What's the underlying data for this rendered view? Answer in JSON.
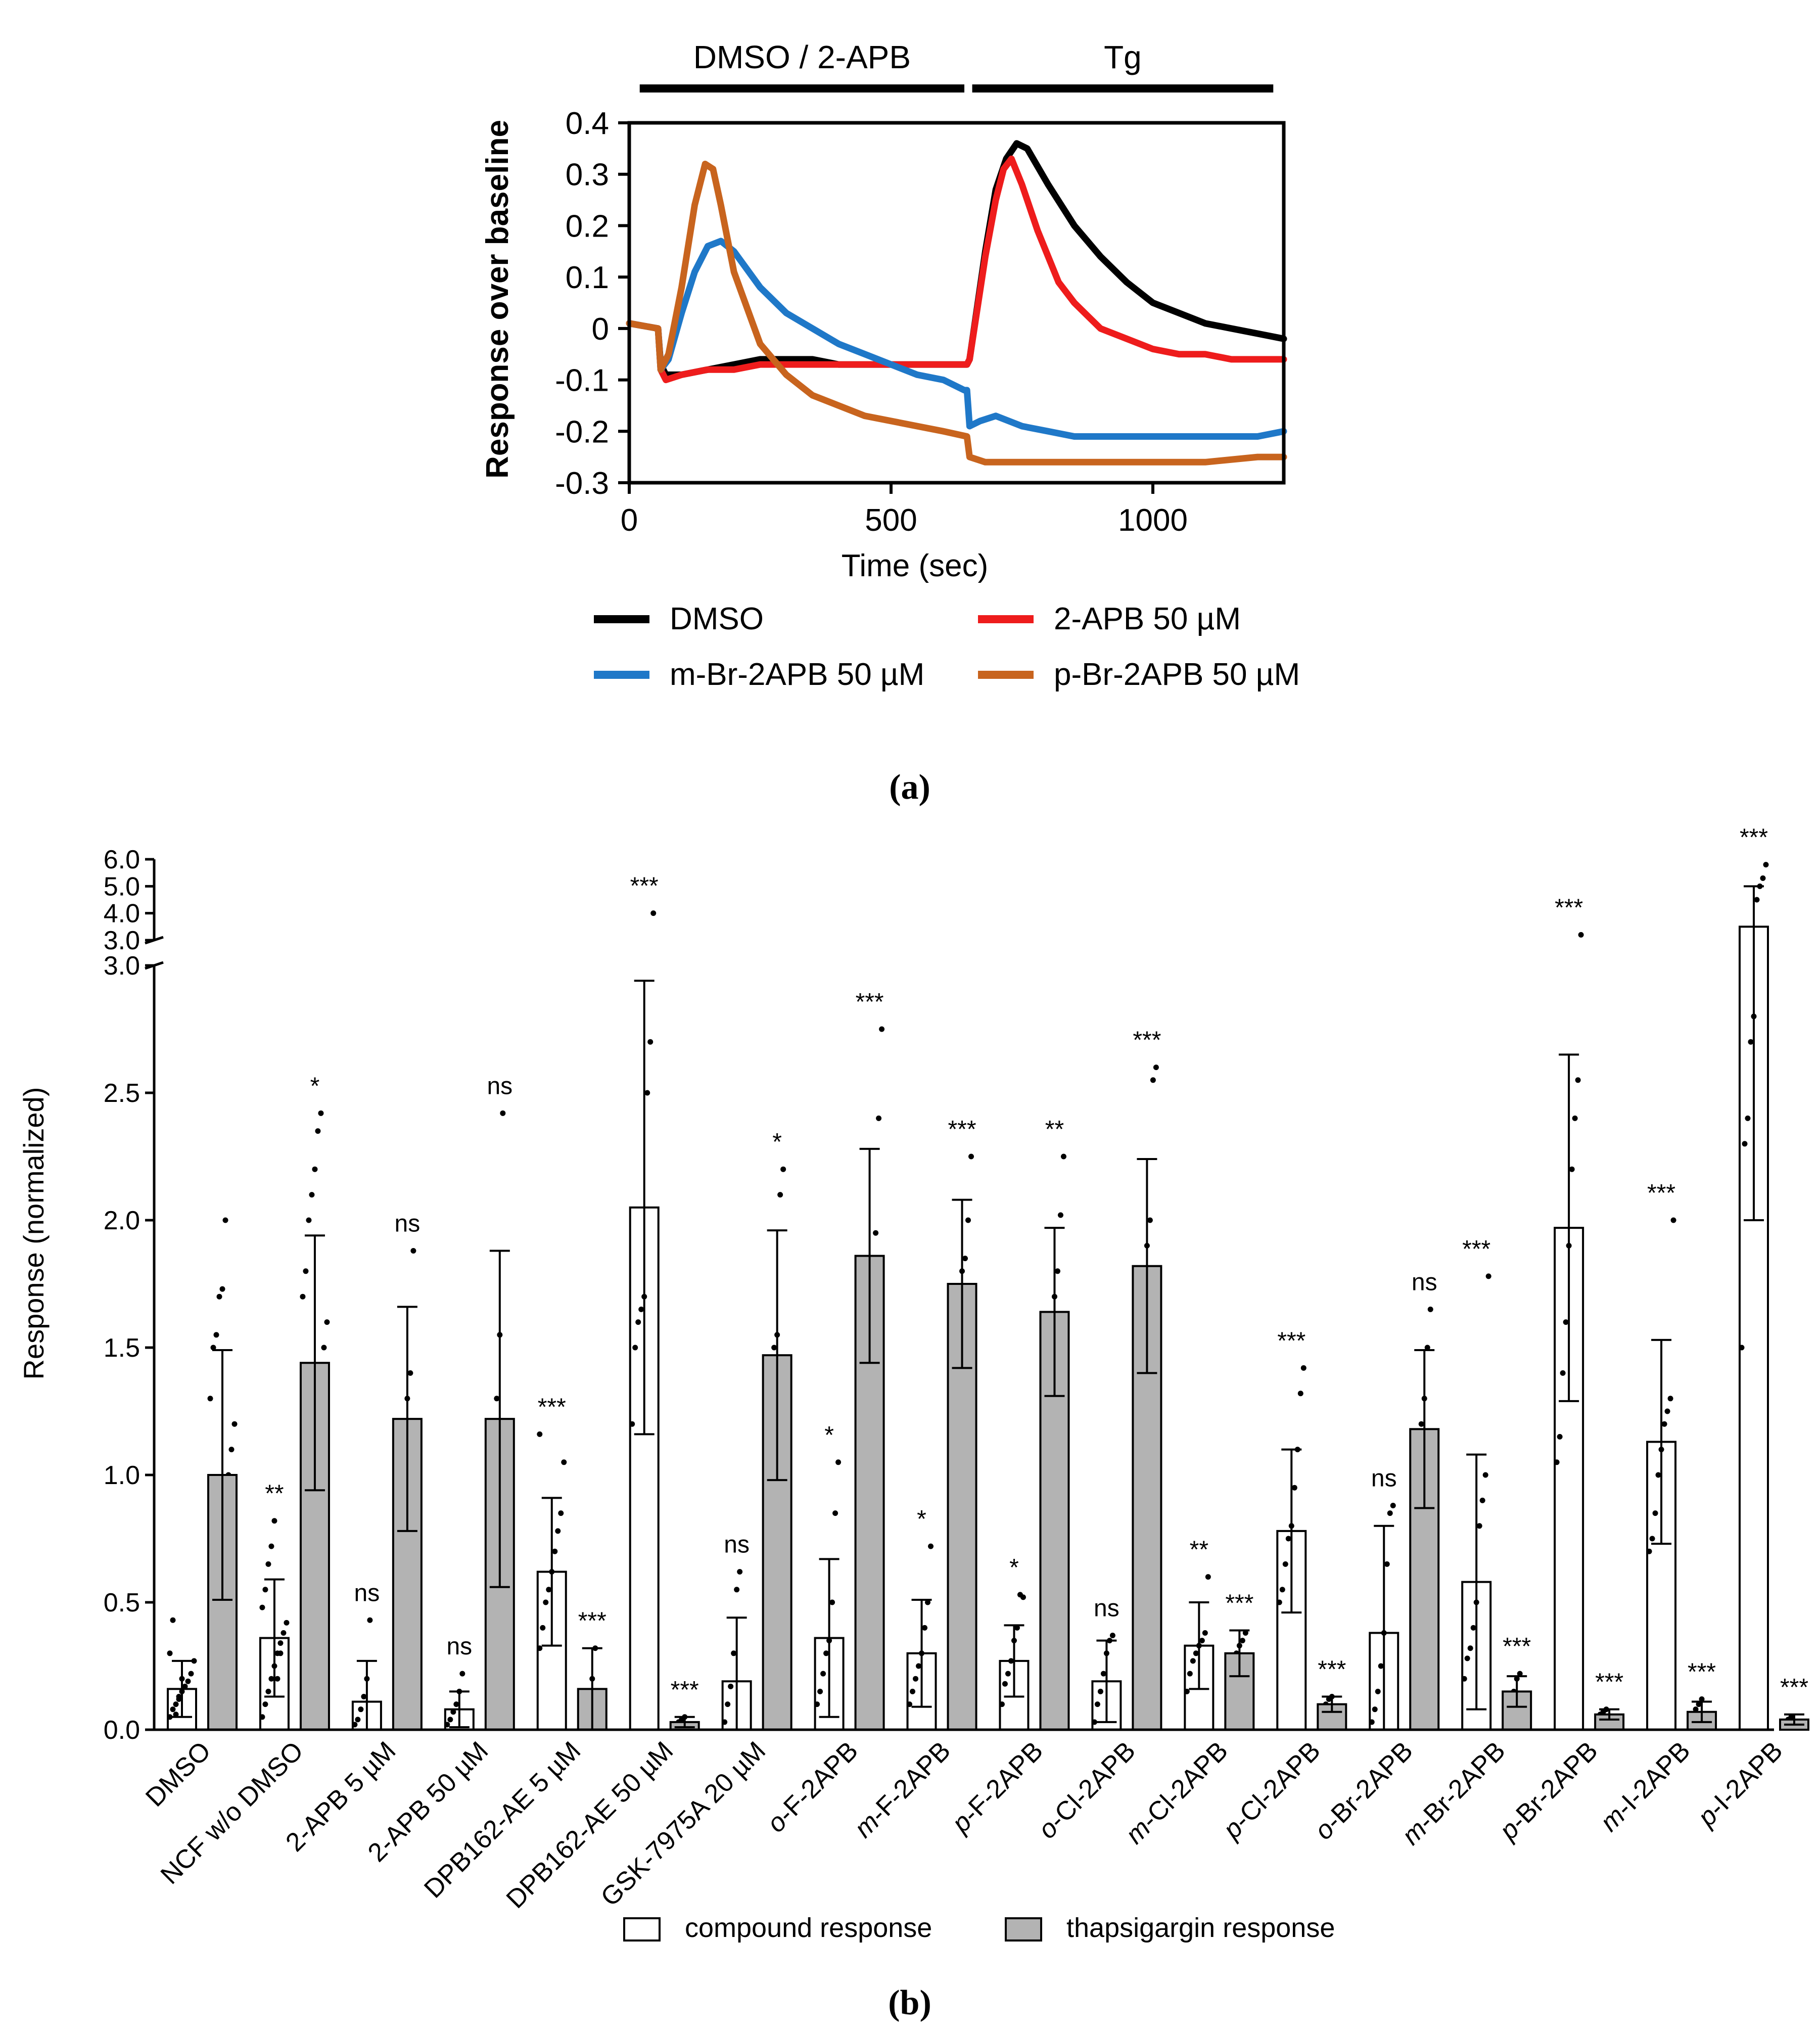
{
  "chart_data": [
    {
      "type": "line",
      "panel_label": "(a)",
      "xlabel": "Time (sec)",
      "ylabel": "Response over baseline",
      "xlim": [
        0,
        1250
      ],
      "ylim": [
        -0.3,
        0.4
      ],
      "xticks": [
        "0",
        "500",
        "1000"
      ],
      "xtick_values": [
        0,
        500,
        1000
      ],
      "yticks": [
        "0.4",
        "0.3",
        "0.2",
        "0.1",
        "0",
        "-0.1",
        "-0.2",
        "-0.3"
      ],
      "ytick_values": [
        0.4,
        0.3,
        0.2,
        0.1,
        0,
        -0.1,
        -0.2,
        -0.3
      ],
      "treatments": [
        {
          "label": "DMSO / 2-APB",
          "start": 20,
          "end": 640
        },
        {
          "label": "Tg",
          "start": 655,
          "end": 1230
        }
      ],
      "series": [
        {
          "name": "DMSO",
          "color": "#000000",
          "x": [
            0,
            55,
            60,
            70,
            100,
            150,
            200,
            250,
            300,
            350,
            400,
            450,
            500,
            550,
            600,
            645,
            650,
            680,
            700,
            720,
            740,
            760,
            800,
            850,
            900,
            950,
            1000,
            1050,
            1100,
            1150,
            1200,
            1250
          ],
          "y": [
            0.01,
            0.0,
            -0.07,
            -0.09,
            -0.09,
            -0.08,
            -0.07,
            -0.06,
            -0.06,
            -0.06,
            -0.07,
            -0.07,
            -0.07,
            -0.07,
            -0.07,
            -0.07,
            -0.06,
            0.15,
            0.27,
            0.33,
            0.36,
            0.35,
            0.28,
            0.2,
            0.14,
            0.09,
            0.05,
            0.03,
            0.01,
            0.0,
            -0.01,
            -0.02
          ]
        },
        {
          "name": "2-APB 50 µM",
          "color": "#ee1c1c",
          "x": [
            0,
            55,
            60,
            70,
            100,
            150,
            200,
            250,
            300,
            350,
            400,
            450,
            500,
            550,
            600,
            645,
            650,
            680,
            700,
            715,
            730,
            750,
            780,
            820,
            850,
            900,
            950,
            1000,
            1050,
            1100,
            1150,
            1200,
            1250
          ],
          "y": [
            0.01,
            0.0,
            -0.08,
            -0.1,
            -0.09,
            -0.08,
            -0.08,
            -0.07,
            -0.07,
            -0.07,
            -0.07,
            -0.07,
            -0.07,
            -0.07,
            -0.07,
            -0.07,
            -0.06,
            0.14,
            0.25,
            0.31,
            0.33,
            0.28,
            0.19,
            0.09,
            0.05,
            0.0,
            -0.02,
            -0.04,
            -0.05,
            -0.05,
            -0.06,
            -0.06,
            -0.06
          ]
        },
        {
          "name": "m-Br-2APB 50 µM",
          "color": "#1f78c8",
          "x": [
            0,
            55,
            60,
            75,
            100,
            125,
            150,
            175,
            200,
            250,
            300,
            350,
            400,
            450,
            500,
            550,
            600,
            640,
            645,
            650,
            670,
            700,
            750,
            800,
            850,
            900,
            1000,
            1100,
            1200,
            1250
          ],
          "y": [
            0.01,
            0.0,
            -0.08,
            -0.06,
            0.03,
            0.11,
            0.16,
            0.17,
            0.15,
            0.08,
            0.03,
            0.0,
            -0.03,
            -0.05,
            -0.07,
            -0.09,
            -0.1,
            -0.12,
            -0.12,
            -0.19,
            -0.18,
            -0.17,
            -0.19,
            -0.2,
            -0.21,
            -0.21,
            -0.21,
            -0.21,
            -0.21,
            -0.2
          ]
        },
        {
          "name": "p-Br-2APB 50 µM",
          "color": "#c8641e",
          "x": [
            0,
            55,
            60,
            75,
            100,
            125,
            145,
            160,
            175,
            200,
            250,
            300,
            350,
            400,
            450,
            500,
            550,
            600,
            645,
            650,
            680,
            700,
            800,
            900,
            1000,
            1100,
            1200,
            1250
          ],
          "y": [
            0.01,
            0.0,
            -0.08,
            -0.05,
            0.08,
            0.24,
            0.32,
            0.31,
            0.24,
            0.11,
            -0.03,
            -0.09,
            -0.13,
            -0.15,
            -0.17,
            -0.18,
            -0.19,
            -0.2,
            -0.21,
            -0.25,
            -0.26,
            -0.26,
            -0.26,
            -0.26,
            -0.26,
            -0.26,
            -0.25,
            -0.25
          ]
        }
      ]
    },
    {
      "type": "bar",
      "panel_label": "(b)",
      "ylabel": "Response (normalized)",
      "ylim": [
        0,
        6
      ],
      "y_axis_break": {
        "lower_range": [
          0,
          3.0
        ],
        "upper_range": [
          3.0,
          6.0
        ]
      },
      "yticks_lower": [
        "0.0",
        "0.5",
        "1.0",
        "1.5",
        "2.0",
        "2.5",
        "3.0"
      ],
      "ytick_values_lower": [
        0,
        0.5,
        1.0,
        1.5,
        2.0,
        2.5,
        3.0
      ],
      "yticks_upper": [
        "3.0",
        "4.0",
        "5.0",
        "6.0"
      ],
      "ytick_values_upper": [
        3.0,
        4.0,
        5.0,
        6.0
      ],
      "categories": [
        {
          "pre": "",
          "it": "",
          "post": "DMSO"
        },
        {
          "pre": "",
          "it": "",
          "post": "NCF w/o DMSO"
        },
        {
          "pre": "",
          "it": "",
          "post": "2-APB 5 µM"
        },
        {
          "pre": "",
          "it": "",
          "post": "2-APB 50 µM"
        },
        {
          "pre": "",
          "it": "",
          "post": "DPB162-AE 5 µM"
        },
        {
          "pre": "",
          "it": "",
          "post": "DPB162-AE 50 µM"
        },
        {
          "pre": "",
          "it": "",
          "post": "GSK-7975A 20 µM"
        },
        {
          "pre": "",
          "it": "o",
          "post": "-F-2APB"
        },
        {
          "pre": "",
          "it": "m",
          "post": "-F-2APB"
        },
        {
          "pre": "",
          "it": "p",
          "post": "-F-2APB"
        },
        {
          "pre": "",
          "it": "o",
          "post": "-Cl-2APB"
        },
        {
          "pre": "",
          "it": "m",
          "post": "-Cl-2APB"
        },
        {
          "pre": "",
          "it": "p",
          "post": "-Cl-2APB"
        },
        {
          "pre": "",
          "it": "o",
          "post": "-Br-2APB"
        },
        {
          "pre": "",
          "it": "m",
          "post": "-Br-2APB"
        },
        {
          "pre": "",
          "it": "p",
          "post": "-Br-2APB"
        },
        {
          "pre": "",
          "it": "m",
          "post": "-I-2APB"
        },
        {
          "pre": "",
          "it": "p",
          "post": "-I-2APB"
        }
      ],
      "series": [
        {
          "name": "compound response",
          "fill": "#ffffff",
          "values": [
            0.16,
            0.36,
            0.11,
            0.08,
            0.62,
            2.05,
            0.19,
            0.36,
            0.3,
            0.27,
            0.19,
            0.33,
            0.78,
            0.38,
            0.58,
            1.97,
            1.13,
            3.5
          ],
          "errors": [
            0.11,
            0.23,
            0.16,
            0.07,
            0.29,
            0.89,
            0.25,
            0.31,
            0.21,
            0.14,
            0.16,
            0.17,
            0.32,
            0.42,
            0.5,
            0.68,
            0.4,
            1.5
          ],
          "significance": [
            "",
            "**",
            "ns",
            "ns",
            "***",
            "***",
            "ns",
            "*",
            "*",
            "*",
            "ns",
            "**",
            "***",
            "ns",
            "***",
            "***",
            "***",
            "***"
          ],
          "points": [
            [
              0.05,
              0.08,
              0.1,
              0.12,
              0.15,
              0.17,
              0.19,
              0.22,
              0.27,
              0.3,
              0.43,
              0.06,
              0.13,
              0.2
            ],
            [
              0.05,
              0.1,
              0.15,
              0.2,
              0.25,
              0.3,
              0.34,
              0.38,
              0.42,
              0.48,
              0.55,
              0.65,
              0.72,
              0.82,
              0.2,
              0.3
            ],
            [
              0.02,
              0.04,
              0.08,
              0.13,
              0.2,
              0.43
            ],
            [
              0.02,
              0.04,
              0.07,
              0.1,
              0.15,
              0.22
            ],
            [
              0.32,
              0.4,
              0.5,
              0.55,
              0.62,
              0.7,
              0.78,
              0.85,
              1.05,
              1.16
            ],
            [
              1.2,
              1.5,
              1.6,
              1.65,
              1.7,
              2.5,
              2.7,
              4.0
            ],
            [
              0.03,
              0.1,
              0.17,
              0.3,
              0.55,
              0.62
            ],
            [
              0.1,
              0.15,
              0.22,
              0.3,
              0.35,
              0.5,
              0.85,
              1.05
            ],
            [
              0.1,
              0.15,
              0.2,
              0.25,
              0.3,
              0.4,
              0.5,
              0.72
            ],
            [
              0.1,
              0.18,
              0.22,
              0.27,
              0.35,
              0.4,
              0.53,
              0.52
            ],
            [
              0.03,
              0.1,
              0.15,
              0.22,
              0.3,
              0.35,
              0.37
            ],
            [
              0.15,
              0.22,
              0.27,
              0.3,
              0.33,
              0.35,
              0.38,
              0.6
            ],
            [
              0.5,
              0.55,
              0.65,
              0.75,
              0.8,
              0.95,
              1.1,
              1.32,
              1.42
            ],
            [
              0.03,
              0.08,
              0.15,
              0.25,
              0.38,
              0.65,
              0.85,
              0.88
            ],
            [
              0.2,
              0.28,
              0.32,
              0.4,
              0.5,
              0.8,
              0.9,
              1.0,
              1.78
            ],
            [
              1.05,
              1.15,
              1.4,
              1.6,
              1.9,
              2.2,
              2.4,
              2.55,
              3.2
            ],
            [
              0.7,
              0.75,
              0.85,
              1.0,
              1.1,
              1.2,
              1.25,
              1.3,
              2.0
            ],
            [
              1.5,
              2.3,
              2.4,
              2.7,
              2.8,
              4.5,
              5.0,
              5.3,
              5.8
            ]
          ]
        },
        {
          "name": "thapsigargin response",
          "fill": "#b3b3b3",
          "values": [
            1.0,
            1.44,
            1.22,
            1.22,
            0.16,
            0.03,
            1.47,
            1.86,
            1.75,
            1.64,
            1.82,
            0.3,
            0.1,
            1.18,
            0.15,
            0.06,
            0.07,
            0.04
          ],
          "errors": [
            0.49,
            0.5,
            0.44,
            0.66,
            0.16,
            0.02,
            0.49,
            0.42,
            0.33,
            0.33,
            0.42,
            0.09,
            0.03,
            0.31,
            0.06,
            0.02,
            0.04,
            0.02
          ],
          "significance": [
            "",
            "*",
            "ns",
            "ns",
            "***",
            "***",
            "*",
            "***",
            "***",
            "**",
            "***",
            "***",
            "***",
            "ns",
            "***",
            "***",
            "***",
            "***"
          ],
          "points": [
            [
              0.17,
              0.45,
              0.6,
              0.7,
              0.8,
              0.9,
              1.0,
              1.1,
              1.2,
              1.3,
              1.5,
              1.55,
              1.7,
              1.73,
              2.0
            ],
            [
              0.5,
              0.7,
              0.9,
              1.0,
              1.2,
              1.3,
              1.4,
              1.5,
              1.6,
              1.7,
              1.8,
              2.0,
              2.1,
              2.2,
              2.35,
              2.42
            ],
            [
              0.6,
              0.8,
              1.1,
              1.2,
              1.3,
              1.4,
              1.88
            ],
            [
              0.27,
              0.62,
              0.9,
              1.3,
              1.55,
              2.42
            ],
            [
              0.03,
              0.08,
              0.1,
              0.15,
              0.2,
              0.32
            ],
            [
              0.01,
              0.02,
              0.03,
              0.04,
              0.05
            ],
            [
              0.9,
              1.0,
              1.2,
              1.5,
              1.55,
              2.1,
              2.2
            ],
            [
              1.6,
              1.65,
              1.7,
              1.75,
              1.8,
              1.85,
              1.95,
              2.4,
              2.75
            ],
            [
              1.35,
              1.5,
              1.6,
              1.7,
              1.8,
              1.85,
              2.0,
              2.25
            ],
            [
              1.3,
              1.35,
              1.45,
              1.6,
              1.7,
              1.8,
              2.02,
              2.25
            ],
            [
              1.55,
              1.6,
              1.7,
              1.8,
              1.9,
              2.0,
              2.55,
              2.6
            ],
            [
              0.18,
              0.22,
              0.27,
              0.3,
              0.33,
              0.35,
              0.38
            ],
            [
              0.06,
              0.08,
              0.1,
              0.12,
              0.13
            ],
            [
              0.85,
              0.95,
              1.05,
              1.2,
              1.3,
              1.5,
              1.65
            ],
            [
              0.08,
              0.1,
              0.13,
              0.15,
              0.2,
              0.22
            ],
            [
              0.04,
              0.06,
              0.07,
              0.08
            ],
            [
              0.03,
              0.05,
              0.08,
              0.1,
              0.12
            ],
            [
              0.02,
              0.03,
              0.04,
              0.05
            ]
          ]
        }
      ],
      "legend": [
        "compound response",
        "thapsigargin response"
      ]
    }
  ]
}
